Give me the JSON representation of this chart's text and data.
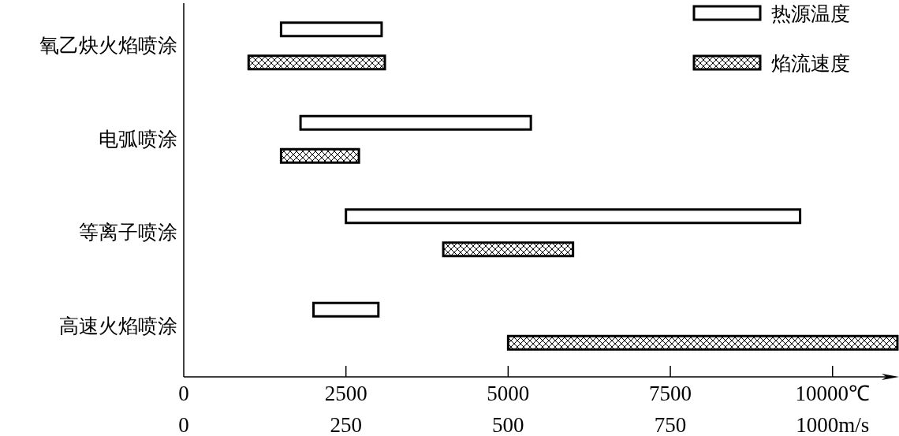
{
  "chart_data": {
    "type": "bar",
    "orientation": "horizontal",
    "legend": "top right",
    "categories": [
      "氧乙炔火焰喷涂",
      "电弧喷涂",
      "等离子喷涂",
      "高速火焰喷涂"
    ],
    "series": [
      {
        "name": "热源温度",
        "color": "#ffffff",
        "base": [
          1500,
          1800,
          2500,
          2000
        ],
        "values": [
          1550,
          3550,
          7000,
          1000
        ]
      },
      {
        "name": "焰流速度",
        "color": "#000000",
        "axis": "x2",
        "base": [
          100,
          150,
          400,
          500
        ],
        "values": [
          210,
          120,
          200,
          600
        ]
      }
    ],
    "xlim": [
      0,
      11000
    ],
    "xticks": [
      0,
      2500,
      5000,
      7500,
      {
        "value": 10000,
        "label": "10000℃"
      }
    ],
    "x2lim": [
      0,
      1100
    ],
    "x2ticks": [
      0,
      250,
      500,
      750,
      {
        "value": 1000,
        "label": "1000m/s"
      }
    ]
  }
}
